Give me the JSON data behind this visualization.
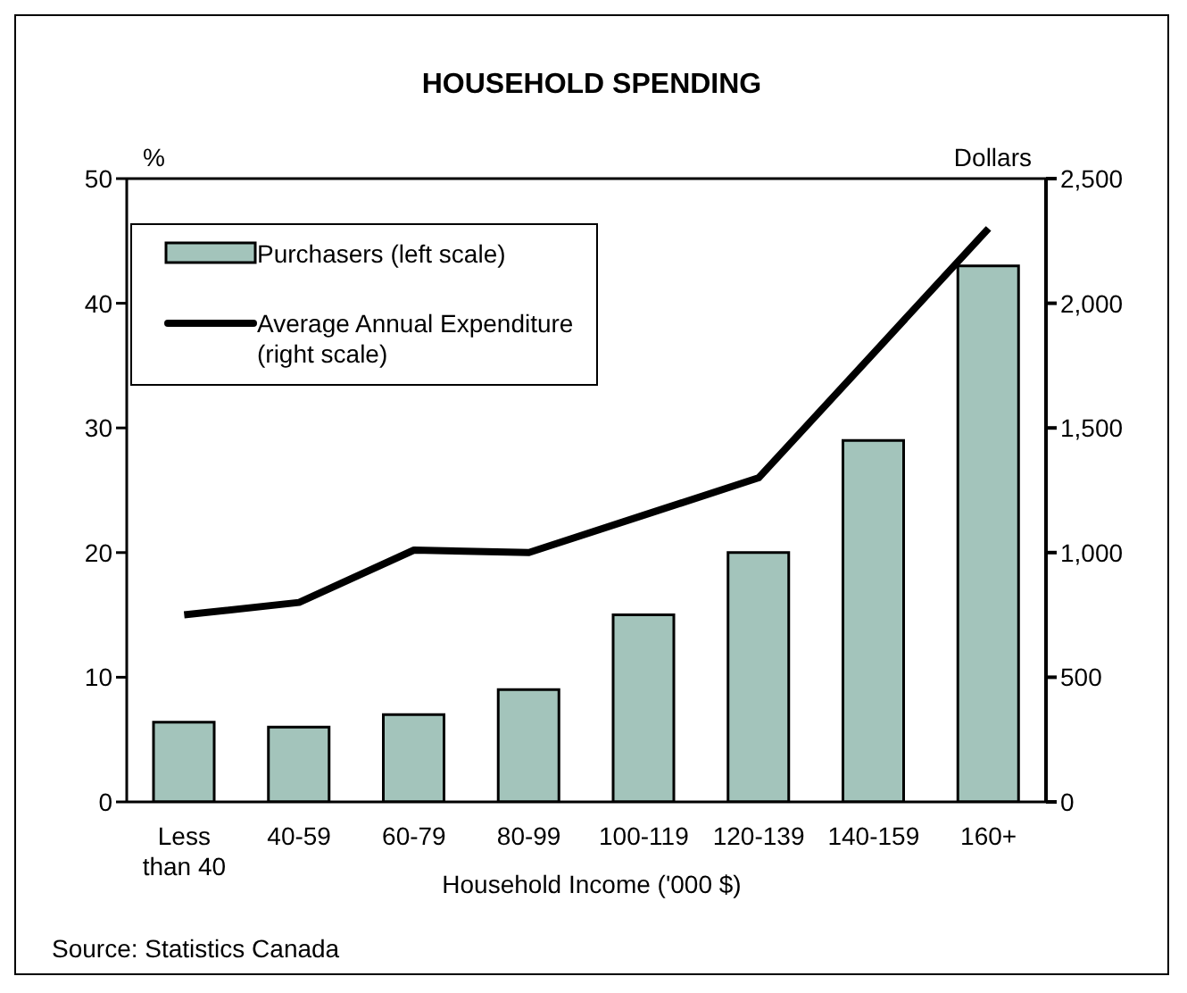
{
  "chart_data": {
    "type": "bar",
    "title": "HOUSEHOLD SPENDING",
    "xlabel": "Household Income ('000 $)",
    "ylabel": "%",
    "y2label": "Dollars",
    "categories": [
      "Less than 40",
      "40-59",
      "60-79",
      "80-99",
      "100-119",
      "120-139",
      "140-159",
      "160+"
    ],
    "series": [
      {
        "name": "Purchasers (left scale)",
        "color": "#a3c4bb",
        "values": [
          6.4,
          6,
          7,
          9,
          15,
          20,
          29,
          43
        ]
      },
      {
        "name": "Average Annual Expenditure (right scale)",
        "type": "line",
        "axis": "y2",
        "color": "#000000",
        "values": [
          750,
          800,
          1010,
          1000,
          1150,
          1300,
          1800,
          2300
        ]
      }
    ],
    "ylim": [
      0,
      50
    ],
    "yticks": [
      0,
      10,
      20,
      30,
      40,
      50
    ],
    "y2lim": [
      0,
      2500
    ],
    "y2ticks": [
      0,
      500,
      {
        "value": 1000,
        "label": "1,000"
      },
      {
        "value": 1500,
        "label": "1,500"
      },
      {
        "value": 2000,
        "label": "2,000"
      },
      {
        "value": 2500,
        "label": "2,500"
      }
    ],
    "legend": "top left",
    "marker": "none",
    "line_style": "solid",
    "annotations": [
      "Source: Statistics Canada"
    ]
  }
}
